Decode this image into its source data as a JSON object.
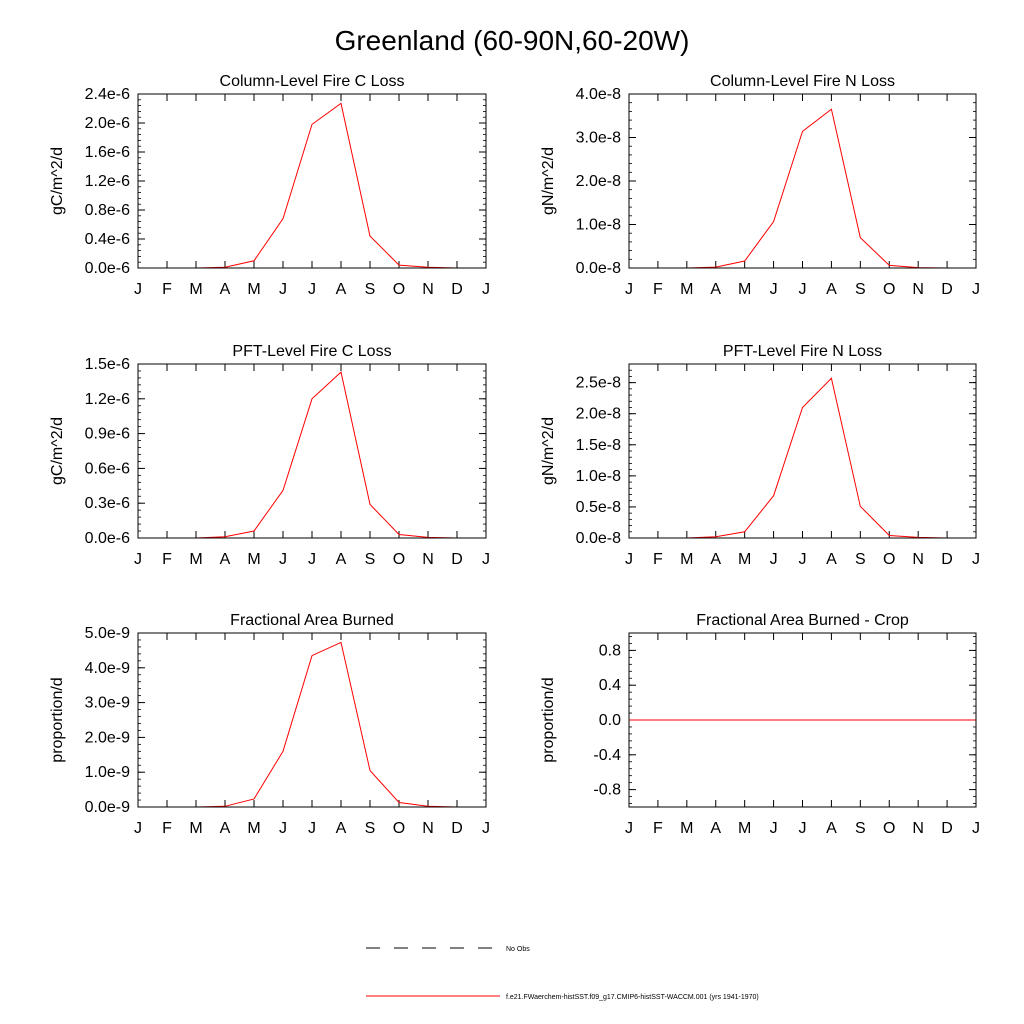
{
  "figure": {
    "title": "Greenland (60-90N,60-20W)"
  },
  "legend": {
    "items": [
      {
        "label": "No Obs",
        "color": "#000000",
        "style": "dashed"
      },
      {
        "label": "f.e21.FWaerchem-histSST.f09_g17.CMIP6-histSST-WACCM.001 (yrs 1941-1970)",
        "color": "#ff0000",
        "style": "solid"
      }
    ]
  },
  "chart_data": [
    {
      "type": "line",
      "title": "Column-Level Fire C Loss",
      "ylabel": "gC/m^2/d",
      "xlabel": "",
      "categories": [
        "J",
        "F",
        "M",
        "A",
        "M",
        "J",
        "J",
        "A",
        "S",
        "O",
        "N",
        "D",
        "J"
      ],
      "ylim": [
        0,
        2.4e-06
      ],
      "yticks": [
        "0.0e-6",
        "0.4e-6",
        "0.8e-6",
        "1.2e-6",
        "1.6e-6",
        "2.0e-6",
        "2.4e-6"
      ],
      "ytick_values": [
        0,
        4e-07,
        8e-07,
        1.2e-06,
        1.6e-06,
        2e-06,
        2.4e-06
      ],
      "series": [
        {
          "color": "#ff0000",
          "values": [
            0,
            0,
            0,
            1e-08,
            1e-07,
            6.8e-07,
            1.98e-06,
            2.27e-06,
            4.4e-07,
            4e-08,
            1e-08,
            0,
            0
          ]
        }
      ]
    },
    {
      "type": "line",
      "title": "Column-Level Fire N Loss",
      "ylabel": "gN/m^2/d",
      "xlabel": "",
      "categories": [
        "J",
        "F",
        "M",
        "A",
        "M",
        "J",
        "J",
        "A",
        "S",
        "O",
        "N",
        "D",
        "J"
      ],
      "ylim": [
        0,
        4e-08
      ],
      "yticks": [
        "0.0e-8",
        "1.0e-8",
        "2.0e-8",
        "3.0e-8",
        "4.0e-8"
      ],
      "ytick_values": [
        0,
        1e-08,
        2e-08,
        3e-08,
        4e-08
      ],
      "series": [
        {
          "color": "#ff0000",
          "values": [
            0,
            0,
            0,
            2e-10,
            1.6e-09,
            1.07e-08,
            3.14e-08,
            3.65e-08,
            7e-09,
            6e-10,
            1e-10,
            0,
            0
          ]
        }
      ]
    },
    {
      "type": "line",
      "title": "PFT-Level Fire C Loss",
      "ylabel": "gC/m^2/d",
      "xlabel": "",
      "categories": [
        "J",
        "F",
        "M",
        "A",
        "M",
        "J",
        "J",
        "A",
        "S",
        "O",
        "N",
        "D",
        "J"
      ],
      "ylim": [
        0,
        1.5e-06
      ],
      "yticks": [
        "0.0e-6",
        "0.3e-6",
        "0.6e-6",
        "0.9e-6",
        "1.2e-6",
        "1.5e-6"
      ],
      "ytick_values": [
        0,
        3e-07,
        6e-07,
        9e-07,
        1.2e-06,
        1.5e-06
      ],
      "series": [
        {
          "color": "#ff0000",
          "values": [
            0,
            0,
            0,
            1e-08,
            6e-08,
            4.1e-07,
            1.2e-06,
            1.43e-06,
            2.9e-07,
            3e-08,
            5e-09,
            0,
            0
          ]
        }
      ]
    },
    {
      "type": "line",
      "title": "PFT-Level Fire N Loss",
      "ylabel": "gN/m^2/d",
      "xlabel": "",
      "categories": [
        "J",
        "F",
        "M",
        "A",
        "M",
        "J",
        "J",
        "A",
        "S",
        "O",
        "N",
        "D",
        "J"
      ],
      "ylim": [
        0,
        2.8e-08
      ],
      "yticks": [
        "0.0e-8",
        "0.5e-8",
        "1.0e-8",
        "1.5e-8",
        "2.0e-8",
        "2.5e-8"
      ],
      "ytick_values": [
        0,
        5e-09,
        1e-08,
        1.5e-08,
        2e-08,
        2.5e-08
      ],
      "series": [
        {
          "color": "#ff0000",
          "values": [
            0,
            0,
            0,
            2e-10,
            1e-09,
            6.8e-09,
            2.1e-08,
            2.57e-08,
            5.1e-09,
            4e-10,
            1e-10,
            0,
            0
          ]
        }
      ]
    },
    {
      "type": "line",
      "title": "Fractional Area Burned",
      "ylabel": "proportion/d",
      "xlabel": "",
      "categories": [
        "J",
        "F",
        "M",
        "A",
        "M",
        "J",
        "J",
        "A",
        "S",
        "O",
        "N",
        "D",
        "J"
      ],
      "ylim": [
        0,
        5e-09
      ],
      "yticks": [
        "0.0e-9",
        "1.0e-9",
        "2.0e-9",
        "3.0e-9",
        "4.0e-9",
        "5.0e-9"
      ],
      "ytick_values": [
        0,
        1e-09,
        2e-09,
        3e-09,
        4e-09,
        5e-09
      ],
      "series": [
        {
          "color": "#ff0000",
          "values": [
            0,
            0,
            0,
            2e-11,
            2.3e-10,
            1.6e-09,
            4.35e-09,
            4.73e-09,
            1.05e-09,
            1.3e-10,
            2e-11,
            0,
            0
          ]
        }
      ]
    },
    {
      "type": "line",
      "title": "Fractional Area Burned - Crop",
      "ylabel": "proportion/d",
      "xlabel": "",
      "categories": [
        "J",
        "F",
        "M",
        "A",
        "M",
        "J",
        "J",
        "A",
        "S",
        "O",
        "N",
        "D",
        "J"
      ],
      "ylim": [
        -1.0,
        1.0
      ],
      "yticks": [
        "-0.8",
        "-0.4",
        "0.0",
        "0.4",
        "0.8"
      ],
      "ytick_values": [
        -0.8,
        -0.4,
        0.0,
        0.4,
        0.8
      ],
      "series": [
        {
          "color": "#ff0000",
          "values": [
            0,
            0,
            0,
            0,
            0,
            0,
            0,
            0,
            0,
            0,
            0,
            0,
            0
          ]
        }
      ]
    }
  ]
}
